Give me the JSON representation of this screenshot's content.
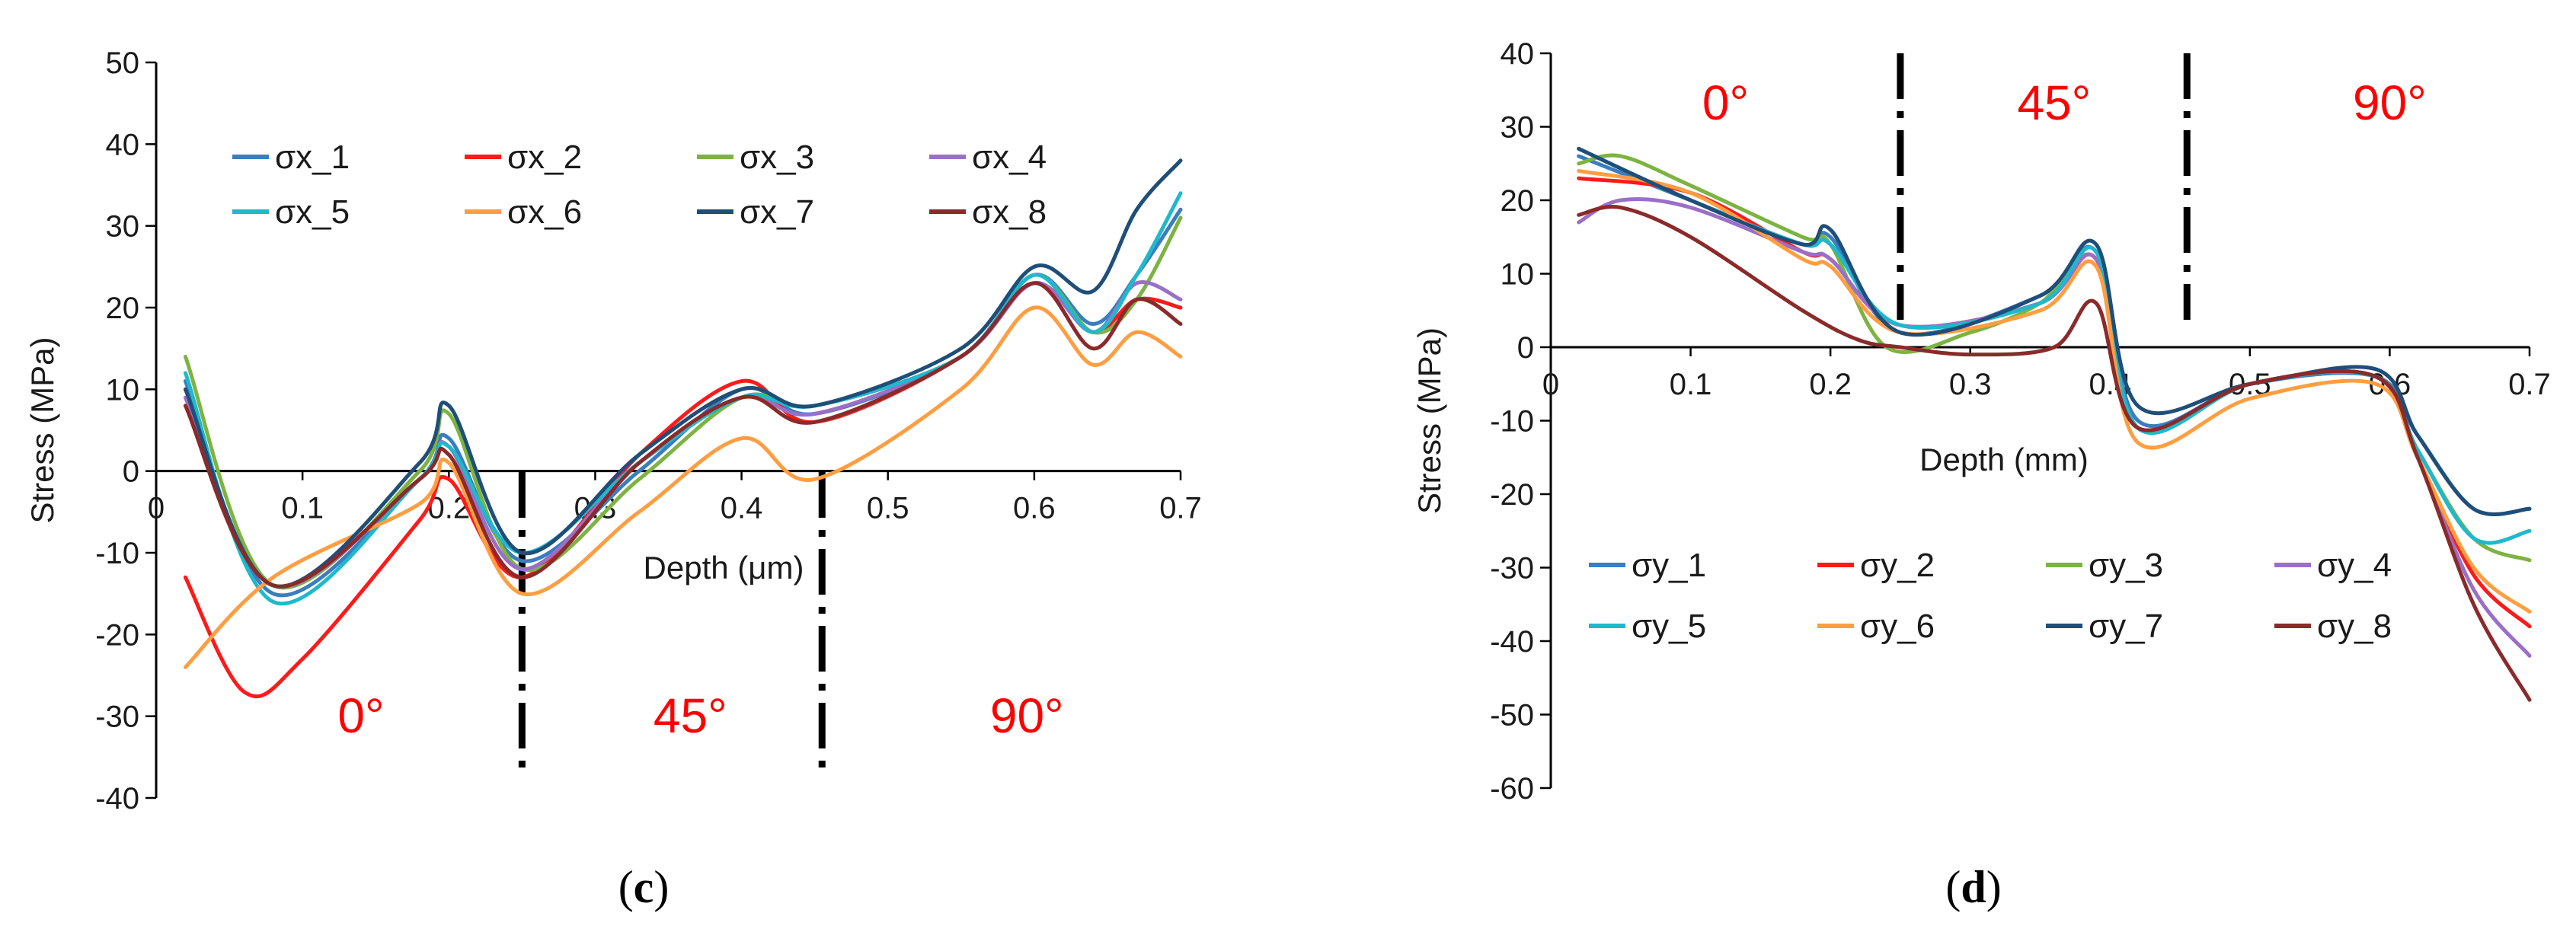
{
  "chart_data": [
    {
      "type": "line",
      "panel_label": "c",
      "xlabel": "Depth (μm)",
      "ylabel": "Stress (MPa)",
      "xlim": [
        0,
        0.7
      ],
      "ylim": [
        -40,
        50
      ],
      "x_ticks": [
        0,
        0.1,
        0.2,
        0.3,
        0.4,
        0.5,
        0.6,
        0.7
      ],
      "x_tick_labels": [
        "0",
        "0.1",
        "0.2",
        "0.3",
        "0.4",
        "0.5",
        "0.6",
        "0.7"
      ],
      "y_ticks": [
        -40,
        -30,
        -20,
        -10,
        0,
        10,
        20,
        30,
        40,
        50
      ],
      "y_tick_labels": [
        "-40",
        "-30",
        "-20",
        "-10",
        "0",
        "10",
        "20",
        "30",
        "40",
        "50"
      ],
      "regions": [
        {
          "label": "0°",
          "x": 0.14,
          "y": -32
        },
        {
          "label": "45°",
          "x": 0.365,
          "y": -32
        },
        {
          "label": "90°",
          "x": 0.595,
          "y": -32
        }
      ],
      "dividers": [
        0.25,
        0.455
      ],
      "legend": {
        "position": "top-left",
        "columns": 4
      },
      "series": [
        {
          "name": "σx_1",
          "color": "#3a7dc0",
          "x": [
            0.02,
            0.08,
            0.18,
            0.2,
            0.25,
            0.33,
            0.4,
            0.45,
            0.55,
            0.6,
            0.64,
            0.67,
            0.7
          ],
          "y": [
            11,
            -15,
            -1,
            4,
            -11,
            0,
            10,
            7,
            14,
            24,
            18,
            24,
            32
          ]
        },
        {
          "name": "σx_2",
          "color": "#ff1a1a",
          "x": [
            0.02,
            0.06,
            0.1,
            0.18,
            0.2,
            0.25,
            0.33,
            0.4,
            0.45,
            0.55,
            0.6,
            0.64,
            0.67,
            0.7
          ],
          "y": [
            -13,
            -27,
            -23,
            -6,
            -1,
            -13,
            2,
            11,
            6,
            14,
            23,
            17,
            21,
            20
          ]
        },
        {
          "name": "σx_3",
          "color": "#7cb342",
          "x": [
            0.02,
            0.08,
            0.18,
            0.2,
            0.25,
            0.33,
            0.4,
            0.45,
            0.55,
            0.6,
            0.64,
            0.67,
            0.7
          ],
          "y": [
            14,
            -14,
            0,
            7,
            -12,
            -1,
            9,
            8,
            14,
            24,
            17,
            21,
            31
          ]
        },
        {
          "name": "σx_4",
          "color": "#9a6fc6",
          "x": [
            0.02,
            0.08,
            0.18,
            0.2,
            0.25,
            0.33,
            0.4,
            0.45,
            0.55,
            0.6,
            0.64,
            0.67,
            0.7
          ],
          "y": [
            9,
            -14,
            -1,
            3,
            -12,
            1,
            9,
            7,
            14,
            23,
            17,
            23,
            21
          ]
        },
        {
          "name": "σx_5",
          "color": "#1fb8cc",
          "x": [
            0.02,
            0.08,
            0.18,
            0.2,
            0.25,
            0.33,
            0.4,
            0.45,
            0.55,
            0.6,
            0.64,
            0.67,
            0.7
          ],
          "y": [
            12,
            -16,
            -1,
            3,
            -10,
            1,
            9,
            8,
            14,
            24,
            17,
            24,
            34
          ]
        },
        {
          "name": "σx_6",
          "color": "#ff9e40",
          "x": [
            0.02,
            0.08,
            0.18,
            0.2,
            0.25,
            0.33,
            0.4,
            0.45,
            0.55,
            0.6,
            0.64,
            0.67,
            0.7
          ],
          "y": [
            -24,
            -13,
            -4,
            1,
            -15,
            -5,
            4,
            -1,
            10,
            20,
            13,
            17,
            14
          ]
        },
        {
          "name": "σx_7",
          "color": "#1f4e79",
          "x": [
            0.02,
            0.08,
            0.18,
            0.2,
            0.25,
            0.33,
            0.4,
            0.45,
            0.55,
            0.6,
            0.64,
            0.67,
            0.7
          ],
          "y": [
            10,
            -14,
            1,
            8,
            -10,
            2,
            10,
            8,
            15,
            25,
            22,
            32,
            38
          ]
        },
        {
          "name": "σx_8",
          "color": "#8b2a2a",
          "x": [
            0.02,
            0.08,
            0.18,
            0.2,
            0.25,
            0.33,
            0.4,
            0.45,
            0.55,
            0.6,
            0.64,
            0.67,
            0.7
          ],
          "y": [
            8,
            -14,
            -1,
            2,
            -13,
            1,
            9,
            6,
            14,
            23,
            15,
            21,
            18
          ]
        }
      ]
    },
    {
      "type": "line",
      "panel_label": "d",
      "xlabel": "Depth (mm)",
      "ylabel": "Stress (MPa)",
      "xlim": [
        0,
        0.7
      ],
      "ylim": [
        -60,
        40
      ],
      "x_ticks": [
        0,
        0.1,
        0.2,
        0.3,
        0.4,
        0.5,
        0.6,
        0.7
      ],
      "x_tick_labels": [
        "0",
        "0.1",
        "0.2",
        "0.3",
        "0.4",
        "0.5",
        "0.6",
        "0.7"
      ],
      "y_ticks": [
        -60,
        -50,
        -40,
        -30,
        -20,
        -10,
        0,
        10,
        20,
        30,
        40
      ],
      "y_tick_labels": [
        "-60",
        "-50",
        "-40",
        "-30",
        "-20",
        "-10",
        "0",
        "10",
        "20",
        "30",
        "40"
      ],
      "regions": [
        {
          "label": "0°",
          "x": 0.125,
          "y": 31
        },
        {
          "label": "45°",
          "x": 0.36,
          "y": 31
        },
        {
          "label": "90°",
          "x": 0.6,
          "y": 31
        }
      ],
      "dividers": [
        0.25,
        0.455
      ],
      "legend": {
        "position": "bottom-left",
        "columns": 4
      },
      "series": [
        {
          "name": "σy_1",
          "color": "#3a7dc0",
          "x": [
            0.02,
            0.1,
            0.18,
            0.2,
            0.25,
            0.35,
            0.39,
            0.42,
            0.5,
            0.59,
            0.62,
            0.66,
            0.7
          ],
          "y": [
            26,
            20,
            14,
            15,
            2,
            7,
            13,
            -10,
            -5,
            -4,
            -12,
            -22,
            -22
          ]
        },
        {
          "name": "σy_2",
          "color": "#ff1a1a",
          "x": [
            0.02,
            0.1,
            0.18,
            0.2,
            0.25,
            0.35,
            0.39,
            0.42,
            0.5,
            0.59,
            0.62,
            0.66,
            0.7
          ],
          "y": [
            23,
            21,
            13,
            12,
            3,
            6,
            12,
            -11,
            -5,
            -4,
            -15,
            -31,
            -38
          ]
        },
        {
          "name": "σy_3",
          "color": "#7cb342",
          "x": [
            0.02,
            0.05,
            0.1,
            0.18,
            0.2,
            0.24,
            0.3,
            0.35,
            0.39,
            0.42,
            0.5,
            0.59,
            0.62,
            0.66,
            0.7
          ],
          "y": [
            25,
            26,
            22,
            15,
            14,
            0,
            2,
            6,
            12,
            -11,
            -5,
            -4,
            -14,
            -26,
            -29
          ]
        },
        {
          "name": "σy_4",
          "color": "#9a6fc6",
          "x": [
            0.02,
            0.05,
            0.1,
            0.18,
            0.2,
            0.25,
            0.35,
            0.39,
            0.42,
            0.5,
            0.59,
            0.62,
            0.66,
            0.7
          ],
          "y": [
            17,
            20,
            19,
            13,
            12,
            3,
            6,
            12,
            -11,
            -5,
            -4,
            -15,
            -33,
            -42
          ]
        },
        {
          "name": "σy_5",
          "color": "#1fb8cc",
          "x": [
            0.02,
            0.1,
            0.18,
            0.2,
            0.25,
            0.35,
            0.39,
            0.42,
            0.5,
            0.59,
            0.62,
            0.66,
            0.7
          ],
          "y": [
            27,
            20,
            14,
            14,
            3,
            6,
            13,
            -11,
            -5,
            -4,
            -14,
            -26,
            -25
          ]
        },
        {
          "name": "σy_6",
          "color": "#ff9e40",
          "x": [
            0.02,
            0.1,
            0.18,
            0.2,
            0.25,
            0.35,
            0.39,
            0.42,
            0.5,
            0.59,
            0.62,
            0.66,
            0.7
          ],
          "y": [
            24,
            21,
            12,
            11,
            2,
            5,
            11,
            -13,
            -7,
            -5,
            -15,
            -30,
            -36
          ]
        },
        {
          "name": "σy_7",
          "color": "#1f4e79",
          "x": [
            0.02,
            0.1,
            0.18,
            0.2,
            0.25,
            0.35,
            0.39,
            0.42,
            0.5,
            0.59,
            0.62,
            0.66,
            0.7
          ],
          "y": [
            27,
            20,
            14,
            16,
            2,
            7,
            14,
            -8,
            -5,
            -3,
            -12,
            -22,
            -22
          ]
        },
        {
          "name": "σy_8",
          "color": "#8b2a2a",
          "x": [
            0.02,
            0.05,
            0.1,
            0.18,
            0.22,
            0.25,
            0.3,
            0.36,
            0.39,
            0.42,
            0.5,
            0.59,
            0.62,
            0.66,
            0.7
          ],
          "y": [
            18,
            19,
            15,
            5,
            1,
            0,
            -1,
            0,
            6,
            -11,
            -5,
            -4,
            -15,
            -35,
            -48
          ]
        }
      ]
    }
  ]
}
